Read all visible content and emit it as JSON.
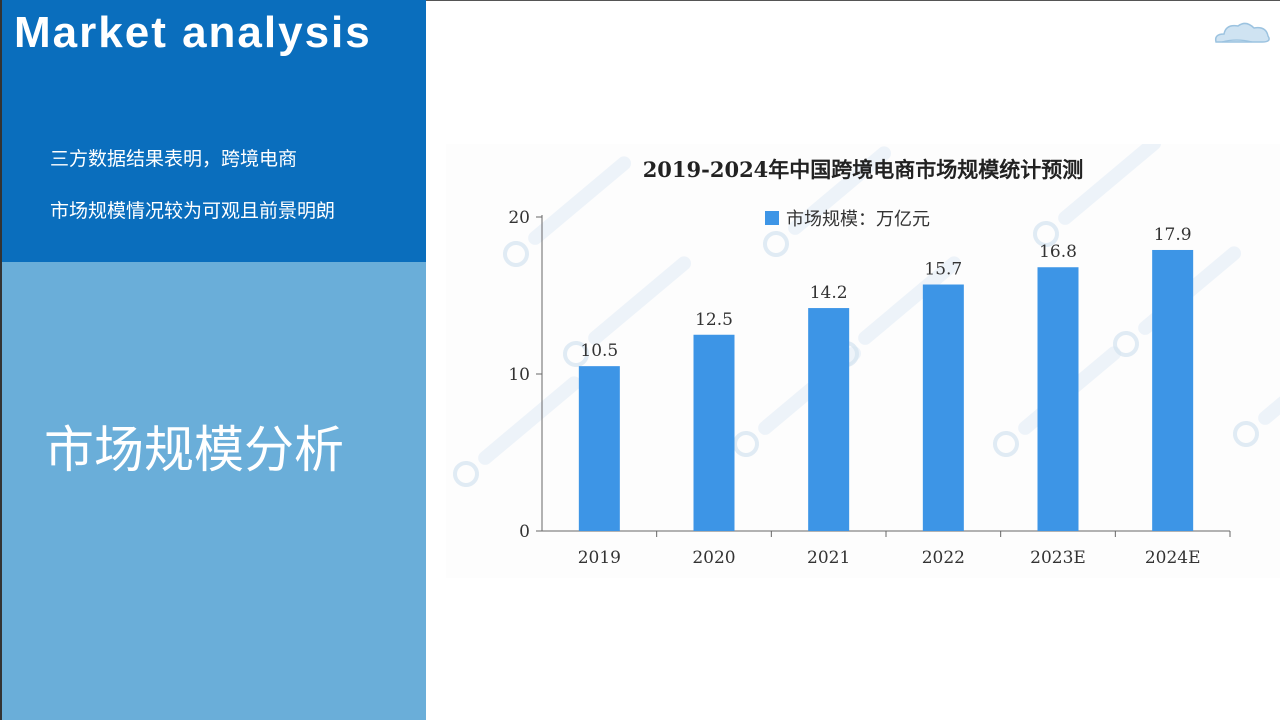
{
  "slide": {
    "en_title": "Market analysis",
    "desc_line1": "三方数据结果表明，跨境电商",
    "desc_line2": "市场规模情况较为可观且前景明朗",
    "cn_title": "市场规模分析",
    "panel_top_color": "#0a6ebd",
    "panel_bottom_color": "#6aaed9"
  },
  "decor": {
    "cloud_icon": "cloud-icon"
  },
  "chart_data": {
    "type": "bar",
    "title": "2019-2024年中国跨境电商市场规模统计预测",
    "categories": [
      "2019",
      "2020",
      "2021",
      "2022",
      "2023E",
      "2024E"
    ],
    "series": [
      {
        "name": "市场规模：万亿元",
        "values": [
          10.5,
          12.5,
          14.2,
          15.7,
          16.8,
          17.9
        ],
        "color": "#3d95e6"
      }
    ],
    "data_labels": [
      "10.5",
      "12.5",
      "14.2",
      "15.7",
      "16.8",
      "17.9"
    ],
    "ylim": [
      0,
      20
    ],
    "yticks": [
      "0",
      "10",
      "20"
    ],
    "xlabel": "",
    "ylabel": "",
    "legend_position": "top",
    "grid": false
  }
}
